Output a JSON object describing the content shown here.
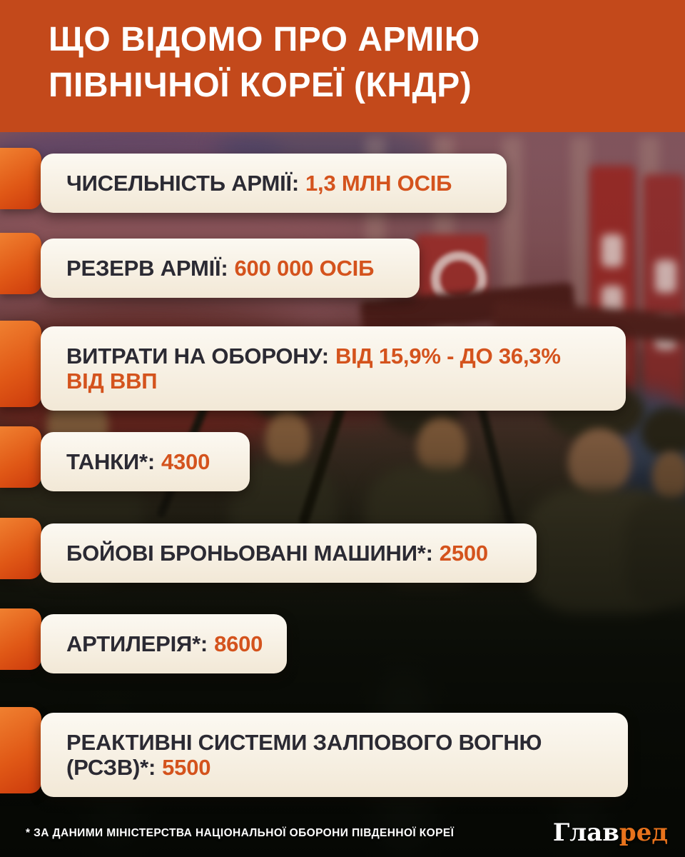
{
  "title": "ЩО ВІДОМО ПРО АРМІЮ ПІВНІЧНОЇ КОРЕЇ (КНДР)",
  "stats": [
    {
      "label": "ЧИСЕЛЬНІСТЬ АРМІЇ:",
      "value": "1,3 МЛН ОСІБ"
    },
    {
      "label": "РЕЗЕРВ АРМІЇ:",
      "value": "600 000 ОСІБ"
    },
    {
      "label": "ВИТРАТИ НА ОБОРОНУ:",
      "value": "ВІД 15,9% - ДО 36,3% ВІД ВВП"
    },
    {
      "label": "ТАНКИ*:",
      "value": "4300"
    },
    {
      "label": "БОЙОВІ БРОНЬОВАНІ МАШИНИ*:",
      "value": "2500"
    },
    {
      "label": "АРТИЛЕРІЯ*:",
      "value": "8600"
    },
    {
      "label": "РЕАКТИВНІ СИСТЕМИ ЗАЛПОВОГО ВОГНЮ (РСЗВ)*:",
      "value": "5500"
    }
  ],
  "footer": {
    "note": "* ЗА ДАНИМИ МІНІСТЕРСТВА НАЦІОНАЛЬНОЇ ОБОРОНИ ПІВДЕННОЇ КОРЕЇ",
    "logo_white": "Глав",
    "logo_orange": "ред"
  },
  "colors": {
    "header_bg": "#c3491b",
    "accent_orange": "#d4531d",
    "tab_orange_light": "#f08030",
    "tab_orange_dark": "#cc3a0c",
    "card_bg_top": "#fcf9f2",
    "card_bg_bottom": "#f2e8d6",
    "label_dark": "#2b2a33",
    "footer_text": "#ffffff",
    "logo_orange": "#e8731c"
  }
}
